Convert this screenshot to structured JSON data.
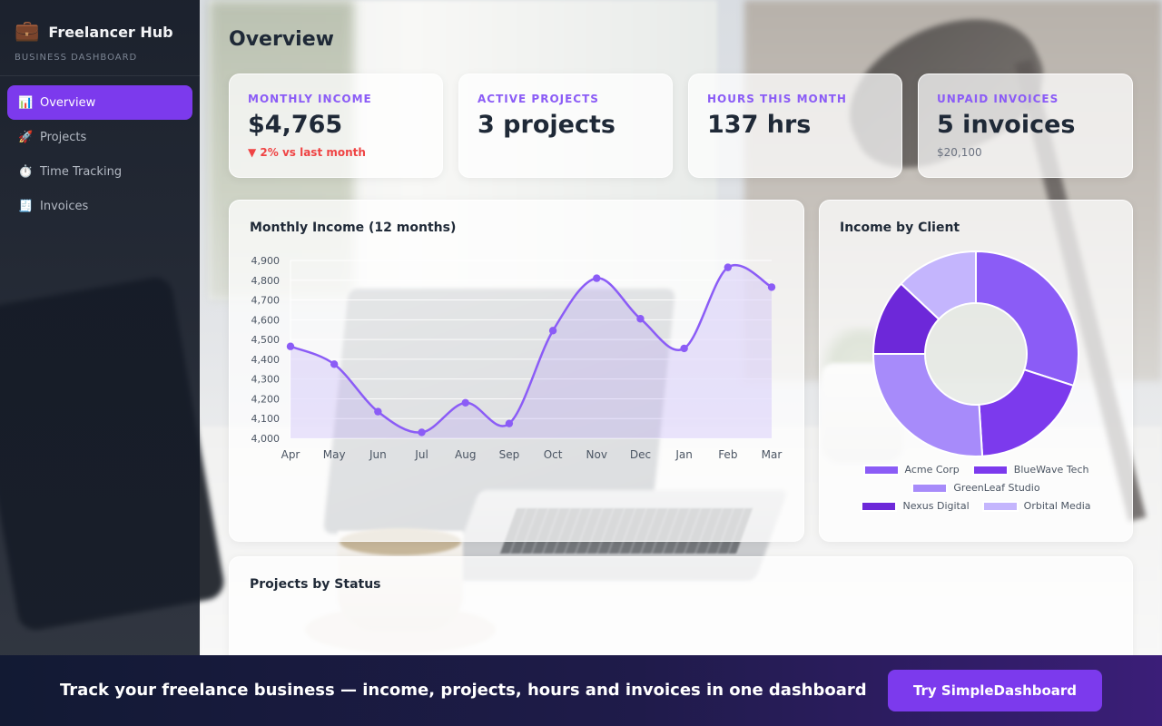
{
  "app": {
    "name": "Freelancer Hub",
    "subtitle": "BUSINESS DASHBOARD",
    "icon": "briefcase-icon"
  },
  "sidebar": {
    "items": [
      {
        "label": "Overview",
        "icon": "bar-chart-icon",
        "glyph": "📊",
        "active": true
      },
      {
        "label": "Projects",
        "icon": "rocket-icon",
        "glyph": "🚀",
        "active": false
      },
      {
        "label": "Time Tracking",
        "icon": "stopwatch-icon",
        "glyph": "⏱️",
        "active": false
      },
      {
        "label": "Invoices",
        "icon": "receipt-icon",
        "glyph": "🧾",
        "active": false
      }
    ]
  },
  "page": {
    "title": "Overview"
  },
  "stats": [
    {
      "label": "MONTHLY INCOME",
      "value": "$4,765",
      "sub": "▼ 2% vs last month",
      "sub_trend": "down"
    },
    {
      "label": "ACTIVE PROJECTS",
      "value": "3 projects",
      "sub": ""
    },
    {
      "label": "HOURS THIS MONTH",
      "value": "137 hrs",
      "sub": ""
    },
    {
      "label": "UNPAID INVOICES",
      "value": "5 invoices",
      "sub": "$20,100"
    }
  ],
  "income_chart": {
    "title": "Monthly Income (12 months)"
  },
  "client_chart": {
    "title": "Income by Client"
  },
  "status_chart": {
    "title": "Projects by Status"
  },
  "banner": {
    "text": "Track your freelance business — income, projects, hours and invoices in one dashboard",
    "cta": "Try SimpleDashboard"
  },
  "colors": {
    "accent": "#7c3aed",
    "accent_light": "#8b5cf6",
    "negative": "#ef4444"
  },
  "chart_data": [
    {
      "type": "line",
      "title": "Monthly Income (12 months)",
      "categories": [
        "Apr",
        "May",
        "Jun",
        "Jul",
        "Aug",
        "Sep",
        "Oct",
        "Nov",
        "Dec",
        "Jan",
        "Feb",
        "Mar"
      ],
      "values": [
        4465,
        4375,
        4135,
        4030,
        4180,
        4075,
        4545,
        4810,
        4605,
        4455,
        4865,
        4765
      ],
      "ylim": [
        4000,
        4900
      ],
      "yticks": [
        "4,000",
        "4,100",
        "4,200",
        "4,300",
        "4,400",
        "4,500",
        "4,600",
        "4,700",
        "4,800",
        "4,900"
      ],
      "grid": true,
      "fill": true,
      "color": "#8b5cf6"
    },
    {
      "type": "pie",
      "title": "Income by Client",
      "donut": true,
      "labels": [
        "Acme Corp",
        "BlueWave Tech",
        "GreenLeaf Studio",
        "Nexus Digital",
        "Orbital Media"
      ],
      "values": [
        30,
        19,
        26,
        12,
        13
      ],
      "colors": [
        "#8b5cf6",
        "#7c3aed",
        "#a78bfa",
        "#6d28d9",
        "#c4b5fd"
      ],
      "legend": "bottom"
    }
  ]
}
